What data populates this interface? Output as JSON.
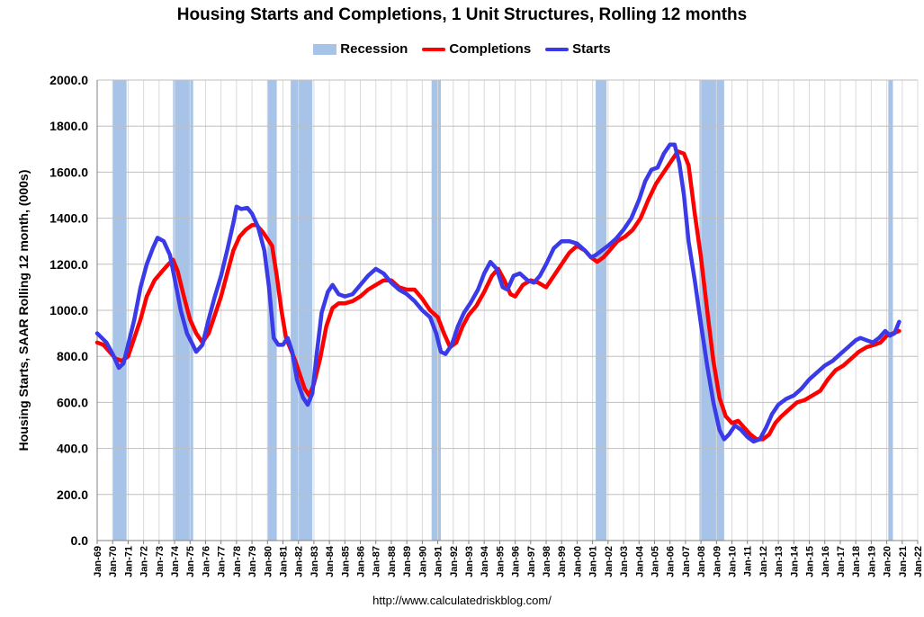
{
  "chart_data": {
    "type": "line",
    "title": "Housing Starts and Completions, 1 Unit Structures, Rolling 12 months",
    "ylabel": "Housing Starts, SAAR Rolling 12 month, (000s)",
    "xlabel": "",
    "ylim": [
      0,
      2000
    ],
    "y_ticks": [
      "0.0",
      "200.0",
      "400.0",
      "600.0",
      "800.0",
      "1000.0",
      "1200.0",
      "1400.0",
      "1600.0",
      "1800.0",
      "2000.0"
    ],
    "x_ticks": [
      "Jan-69",
      "Jan-70",
      "Jan-71",
      "Jan-72",
      "Jan-73",
      "Jan-74",
      "Jan-75",
      "Jan-76",
      "Jan-77",
      "Jan-78",
      "Jan-79",
      "Jan-80",
      "Jan-81",
      "Jan-82",
      "Jan-83",
      "Jan-84",
      "Jan-85",
      "Jan-86",
      "Jan-87",
      "Jan-88",
      "Jan-89",
      "Jan-90",
      "Jan-91",
      "Jan-92",
      "Jan-93",
      "Jan-94",
      "Jan-95",
      "Jan-96",
      "Jan-97",
      "Jan-98",
      "Jan-99",
      "Jan-00",
      "Jan-01",
      "Jan-02",
      "Jan-03",
      "Jan-04",
      "Jan-05",
      "Jan-06",
      "Jan-07",
      "Jan-08",
      "Jan-09",
      "Jan-10",
      "Jan-11",
      "Jan-12",
      "Jan-13",
      "Jan-14",
      "Jan-15",
      "Jan-16",
      "Jan-17",
      "Jan-18",
      "Jan-19",
      "Jan-20",
      "Jan-21",
      "Jan-22"
    ],
    "x_range": [
      1969,
      2022
    ],
    "legend": [
      "Recession",
      "Completions",
      "Starts"
    ],
    "legend_position": "top-center",
    "grid": true,
    "recessions": [
      [
        1970.0,
        1970.9
      ],
      [
        1973.9,
        1975.2
      ],
      [
        1980.0,
        1980.6
      ],
      [
        1981.5,
        1982.9
      ],
      [
        1990.6,
        1991.2
      ],
      [
        2001.2,
        2001.9
      ],
      [
        2007.9,
        2009.5
      ],
      [
        2020.1,
        2020.4
      ]
    ],
    "series": [
      {
        "name": "Starts",
        "color": "#3a3ae8",
        "points": [
          [
            1969.0,
            900
          ],
          [
            1969.3,
            880
          ],
          [
            1969.6,
            860
          ],
          [
            1970.0,
            810
          ],
          [
            1970.4,
            750
          ],
          [
            1970.7,
            770
          ],
          [
            1971.0,
            850
          ],
          [
            1971.4,
            960
          ],
          [
            1971.8,
            1100
          ],
          [
            1972.2,
            1200
          ],
          [
            1972.6,
            1270
          ],
          [
            1972.9,
            1315
          ],
          [
            1973.3,
            1300
          ],
          [
            1973.7,
            1240
          ],
          [
            1974.0,
            1140
          ],
          [
            1974.4,
            1000
          ],
          [
            1974.8,
            900
          ],
          [
            1975.1,
            860
          ],
          [
            1975.4,
            820
          ],
          [
            1975.8,
            850
          ],
          [
            1976.2,
            960
          ],
          [
            1976.6,
            1060
          ],
          [
            1977.0,
            1150
          ],
          [
            1977.4,
            1260
          ],
          [
            1977.8,
            1380
          ],
          [
            1978.0,
            1450
          ],
          [
            1978.3,
            1440
          ],
          [
            1978.7,
            1445
          ],
          [
            1979.0,
            1420
          ],
          [
            1979.4,
            1360
          ],
          [
            1979.8,
            1260
          ],
          [
            1980.1,
            1100
          ],
          [
            1980.4,
            880
          ],
          [
            1980.7,
            850
          ],
          [
            1981.0,
            850
          ],
          [
            1981.3,
            880
          ],
          [
            1981.6,
            820
          ],
          [
            1981.9,
            700
          ],
          [
            1982.3,
            620
          ],
          [
            1982.6,
            590
          ],
          [
            1982.9,
            640
          ],
          [
            1983.2,
            820
          ],
          [
            1983.5,
            990
          ],
          [
            1983.9,
            1080
          ],
          [
            1984.2,
            1110
          ],
          [
            1984.6,
            1070
          ],
          [
            1985.0,
            1060
          ],
          [
            1985.5,
            1070
          ],
          [
            1986.0,
            1110
          ],
          [
            1986.5,
            1150
          ],
          [
            1987.0,
            1180
          ],
          [
            1987.5,
            1160
          ],
          [
            1988.0,
            1120
          ],
          [
            1988.5,
            1090
          ],
          [
            1989.0,
            1070
          ],
          [
            1989.5,
            1040
          ],
          [
            1990.0,
            1000
          ],
          [
            1990.5,
            970
          ],
          [
            1990.9,
            900
          ],
          [
            1991.2,
            820
          ],
          [
            1991.5,
            810
          ],
          [
            1991.9,
            850
          ],
          [
            1992.3,
            930
          ],
          [
            1992.7,
            990
          ],
          [
            1993.1,
            1030
          ],
          [
            1993.6,
            1090
          ],
          [
            1994.0,
            1160
          ],
          [
            1994.4,
            1210
          ],
          [
            1994.8,
            1180
          ],
          [
            1995.2,
            1100
          ],
          [
            1995.5,
            1090
          ],
          [
            1995.9,
            1150
          ],
          [
            1996.3,
            1160
          ],
          [
            1996.8,
            1130
          ],
          [
            1997.2,
            1120
          ],
          [
            1997.6,
            1150
          ],
          [
            1998.0,
            1200
          ],
          [
            1998.5,
            1270
          ],
          [
            1999.0,
            1300
          ],
          [
            1999.5,
            1300
          ],
          [
            2000.0,
            1290
          ],
          [
            2000.5,
            1260
          ],
          [
            2000.9,
            1230
          ],
          [
            2001.2,
            1240
          ],
          [
            2001.6,
            1260
          ],
          [
            2002.0,
            1280
          ],
          [
            2002.5,
            1310
          ],
          [
            2003.0,
            1350
          ],
          [
            2003.5,
            1400
          ],
          [
            2004.0,
            1480
          ],
          [
            2004.4,
            1560
          ],
          [
            2004.8,
            1610
          ],
          [
            2005.2,
            1620
          ],
          [
            2005.6,
            1680
          ],
          [
            2006.0,
            1720
          ],
          [
            2006.3,
            1720
          ],
          [
            2006.6,
            1640
          ],
          [
            2006.9,
            1500
          ],
          [
            2007.2,
            1300
          ],
          [
            2007.6,
            1130
          ],
          [
            2008.0,
            940
          ],
          [
            2008.4,
            760
          ],
          [
            2008.8,
            600
          ],
          [
            2009.2,
            480
          ],
          [
            2009.5,
            440
          ],
          [
            2009.8,
            460
          ],
          [
            2010.2,
            500
          ],
          [
            2010.6,
            480
          ],
          [
            2011.0,
            450
          ],
          [
            2011.4,
            430
          ],
          [
            2011.8,
            440
          ],
          [
            2012.2,
            490
          ],
          [
            2012.6,
            550
          ],
          [
            2013.0,
            590
          ],
          [
            2013.5,
            615
          ],
          [
            2014.0,
            630
          ],
          [
            2014.5,
            660
          ],
          [
            2015.0,
            700
          ],
          [
            2015.5,
            730
          ],
          [
            2016.0,
            760
          ],
          [
            2016.5,
            780
          ],
          [
            2017.0,
            810
          ],
          [
            2017.5,
            840
          ],
          [
            2018.0,
            870
          ],
          [
            2018.3,
            880
          ],
          [
            2018.7,
            870
          ],
          [
            2019.1,
            860
          ],
          [
            2019.5,
            880
          ],
          [
            2019.9,
            910
          ],
          [
            2020.2,
            890
          ],
          [
            2020.5,
            900
          ],
          [
            2020.8,
            950
          ]
        ]
      },
      {
        "name": "Completions",
        "color": "#ff0000",
        "points": [
          [
            1969.0,
            860
          ],
          [
            1969.4,
            850
          ],
          [
            1969.8,
            820
          ],
          [
            1970.2,
            790
          ],
          [
            1970.6,
            780
          ],
          [
            1971.0,
            800
          ],
          [
            1971.4,
            880
          ],
          [
            1971.8,
            960
          ],
          [
            1972.2,
            1060
          ],
          [
            1972.7,
            1130
          ],
          [
            1973.2,
            1170
          ],
          [
            1973.6,
            1200
          ],
          [
            1973.9,
            1220
          ],
          [
            1974.2,
            1170
          ],
          [
            1974.6,
            1060
          ],
          [
            1975.0,
            960
          ],
          [
            1975.4,
            900
          ],
          [
            1975.8,
            860
          ],
          [
            1976.2,
            900
          ],
          [
            1976.6,
            980
          ],
          [
            1977.0,
            1060
          ],
          [
            1977.4,
            1160
          ],
          [
            1977.8,
            1260
          ],
          [
            1978.2,
            1320
          ],
          [
            1978.6,
            1350
          ],
          [
            1979.0,
            1370
          ],
          [
            1979.3,
            1370
          ],
          [
            1979.7,
            1340
          ],
          [
            1980.0,
            1310
          ],
          [
            1980.3,
            1280
          ],
          [
            1980.6,
            1150
          ],
          [
            1980.9,
            1000
          ],
          [
            1981.2,
            880
          ],
          [
            1981.5,
            830
          ],
          [
            1981.8,
            780
          ],
          [
            1982.1,
            720
          ],
          [
            1982.4,
            660
          ],
          [
            1982.7,
            630
          ],
          [
            1983.0,
            680
          ],
          [
            1983.4,
            790
          ],
          [
            1983.8,
            930
          ],
          [
            1984.2,
            1010
          ],
          [
            1984.6,
            1030
          ],
          [
            1985.0,
            1030
          ],
          [
            1985.5,
            1040
          ],
          [
            1986.0,
            1060
          ],
          [
            1986.5,
            1090
          ],
          [
            1987.0,
            1110
          ],
          [
            1987.5,
            1130
          ],
          [
            1988.0,
            1130
          ],
          [
            1988.5,
            1100
          ],
          [
            1989.0,
            1090
          ],
          [
            1989.5,
            1090
          ],
          [
            1990.0,
            1050
          ],
          [
            1990.5,
            1000
          ],
          [
            1991.0,
            970
          ],
          [
            1991.4,
            900
          ],
          [
            1991.8,
            840
          ],
          [
            1992.2,
            860
          ],
          [
            1992.6,
            930
          ],
          [
            1993.0,
            980
          ],
          [
            1993.5,
            1020
          ],
          [
            1994.0,
            1080
          ],
          [
            1994.5,
            1150
          ],
          [
            1994.9,
            1180
          ],
          [
            1995.3,
            1130
          ],
          [
            1995.7,
            1070
          ],
          [
            1996.0,
            1060
          ],
          [
            1996.5,
            1110
          ],
          [
            1997.0,
            1130
          ],
          [
            1997.5,
            1120
          ],
          [
            1998.0,
            1100
          ],
          [
            1998.5,
            1150
          ],
          [
            1999.0,
            1200
          ],
          [
            1999.5,
            1250
          ],
          [
            2000.0,
            1280
          ],
          [
            2000.5,
            1260
          ],
          [
            2000.9,
            1230
          ],
          [
            2001.3,
            1210
          ],
          [
            2001.7,
            1230
          ],
          [
            2002.1,
            1260
          ],
          [
            2002.6,
            1300
          ],
          [
            2003.1,
            1320
          ],
          [
            2003.6,
            1350
          ],
          [
            2004.1,
            1400
          ],
          [
            2004.6,
            1480
          ],
          [
            2005.1,
            1550
          ],
          [
            2005.6,
            1600
          ],
          [
            2006.1,
            1650
          ],
          [
            2006.5,
            1690
          ],
          [
            2006.9,
            1680
          ],
          [
            2007.2,
            1630
          ],
          [
            2007.6,
            1420
          ],
          [
            2008.0,
            1230
          ],
          [
            2008.4,
            1000
          ],
          [
            2008.8,
            780
          ],
          [
            2009.2,
            620
          ],
          [
            2009.6,
            540
          ],
          [
            2010.0,
            510
          ],
          [
            2010.4,
            520
          ],
          [
            2010.8,
            490
          ],
          [
            2011.2,
            460
          ],
          [
            2011.6,
            440
          ],
          [
            2012.0,
            440
          ],
          [
            2012.4,
            460
          ],
          [
            2012.8,
            510
          ],
          [
            2013.2,
            540
          ],
          [
            2013.7,
            570
          ],
          [
            2014.2,
            600
          ],
          [
            2014.7,
            610
          ],
          [
            2015.2,
            630
          ],
          [
            2015.7,
            650
          ],
          [
            2016.2,
            700
          ],
          [
            2016.7,
            740
          ],
          [
            2017.2,
            760
          ],
          [
            2017.7,
            790
          ],
          [
            2018.2,
            820
          ],
          [
            2018.7,
            840
          ],
          [
            2019.2,
            850
          ],
          [
            2019.6,
            860
          ],
          [
            2020.0,
            890
          ],
          [
            2020.4,
            900
          ],
          [
            2020.8,
            910
          ]
        ]
      }
    ]
  },
  "source": "http://www.calculatedriskblog.com/",
  "colors": {
    "recession": "#a7c4e8",
    "grid": "#bfbfbf",
    "axis": "#808080"
  }
}
